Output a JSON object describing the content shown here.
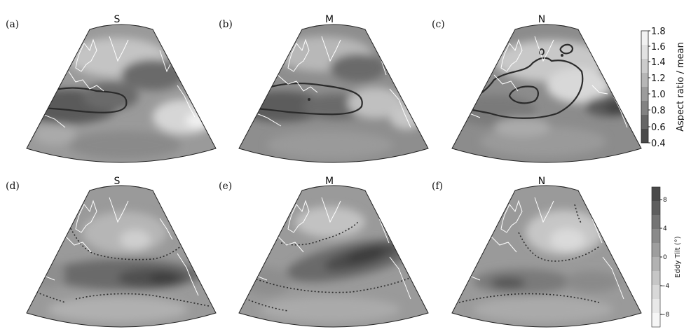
{
  "panels": [
    {
      "letter": "(a)",
      "title": "S"
    },
    {
      "letter": "(b)",
      "title": "M"
    },
    {
      "letter": "(c)",
      "title": "N"
    },
    {
      "letter": "(d)",
      "title": "S"
    },
    {
      "letter": "(e)",
      "title": "M"
    },
    {
      "letter": "(f)",
      "title": "N"
    }
  ],
  "colorbar_top": {
    "label": "Aspect ratio / mean",
    "ticks": [
      "1.8",
      "1.6",
      "1.4",
      "1.2",
      "1.0",
      "0.8",
      "0.6",
      "0.4"
    ]
  },
  "colorbar_bottom": {
    "label": "Eddy Tilt (°)",
    "ticks": [
      "8",
      "4",
      "0",
      "−4",
      "−8"
    ]
  },
  "colors": {
    "dark": "#505050",
    "mid": "#8a8a8a",
    "light": "#c8c8c8",
    "lightest": "#e8e8e8",
    "coast": "#ffffff",
    "contour": "#2b2b2b"
  }
}
